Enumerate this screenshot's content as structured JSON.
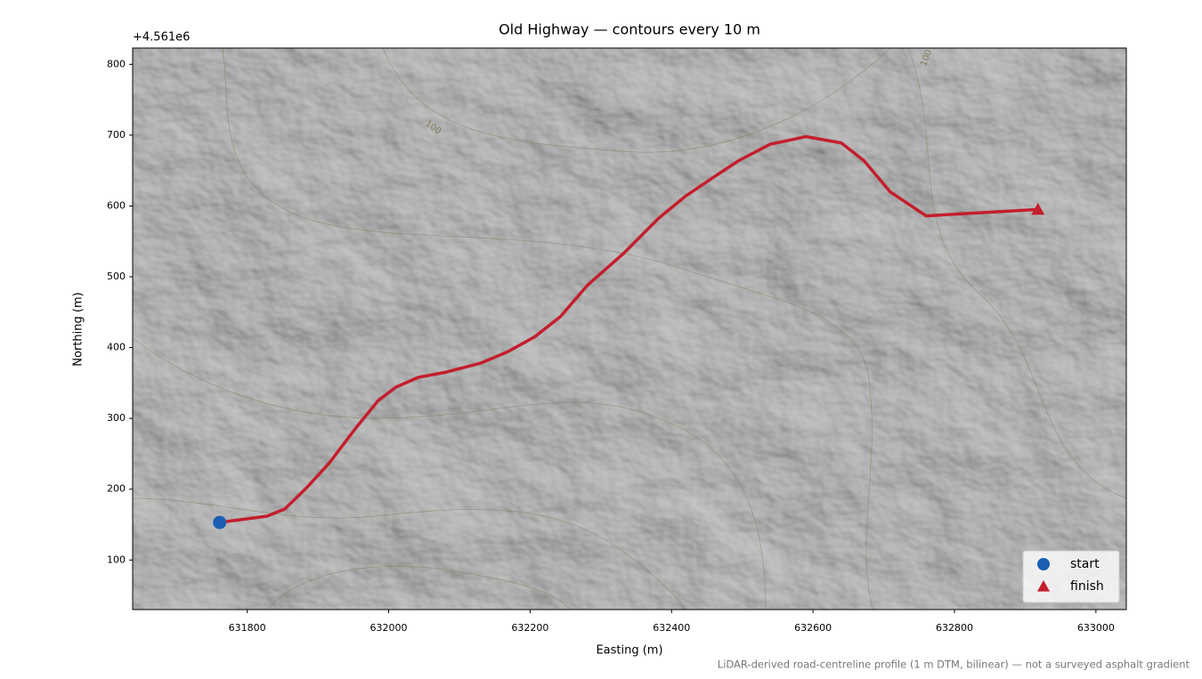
{
  "chart_data": {
    "type": "line",
    "title": "Old Highway — contours every 10 m",
    "x_label": "Easting (m)",
    "y_label": "Northing (m)",
    "y_offset_label": "+4.561e6",
    "note": "LiDAR-derived road-centreline profile (1 m DTM, bilinear) — not a surveyed asphalt gradient",
    "xlim": [
      631638,
      633043
    ],
    "ylim": [
      30,
      823
    ],
    "xticks": [
      631800,
      632000,
      632200,
      632400,
      632600,
      632800,
      633000
    ],
    "yticks": [
      100,
      200,
      300,
      400,
      500,
      600,
      700,
      800
    ],
    "line": {
      "color": "#c41e2d",
      "x": [
        631761,
        631828,
        631853,
        631884,
        631916,
        631954,
        631985,
        632010,
        632042,
        632080,
        632130,
        632168,
        632206,
        632243,
        632281,
        632331,
        632382,
        632420,
        632457,
        632495,
        632539,
        632590,
        632640,
        632672,
        632709,
        632760,
        632810,
        632918
      ],
      "y": [
        153,
        162,
        172,
        202,
        237,
        287,
        325,
        344,
        358,
        365,
        378,
        394,
        415,
        444,
        488,
        532,
        583,
        614,
        639,
        664,
        687,
        698,
        689,
        664,
        620,
        586,
        589,
        595
      ]
    },
    "series": [
      {
        "name": "start",
        "color": "#1a5fb4",
        "marker": "circle",
        "x": [
          631761
        ],
        "y": [
          153
        ]
      },
      {
        "name": "finish",
        "color": "#c41e2d",
        "marker": "triangle",
        "x": [
          632918
        ],
        "y": [
          595
        ]
      }
    ],
    "legend": "lower right",
    "contour_labels": [
      {
        "text": "100",
        "x": 632063,
        "y": 711
      },
      {
        "text": "100",
        "x": 632760,
        "y": 809
      }
    ]
  }
}
